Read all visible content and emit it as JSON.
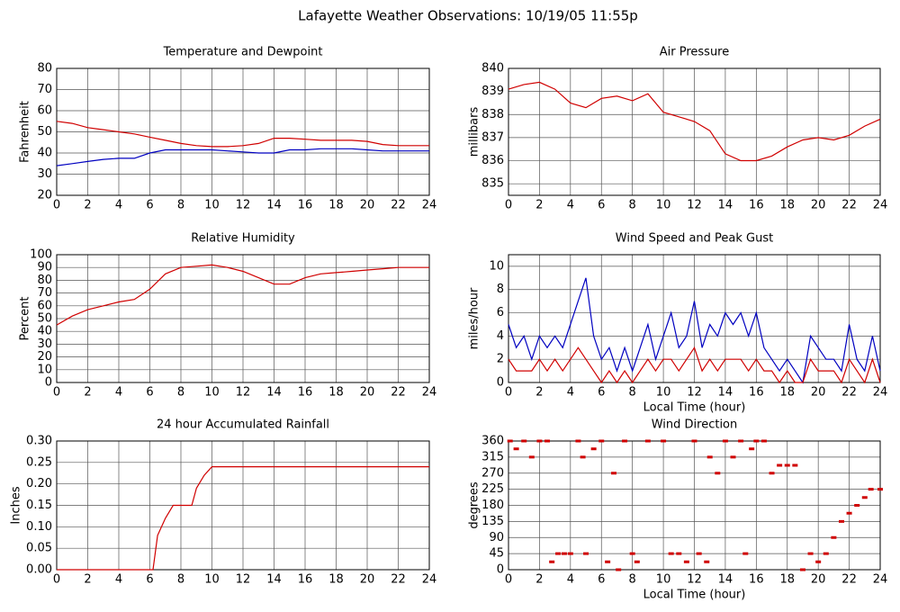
{
  "title": "Lafayette Weather Observations: 10/19/05 11:55p",
  "chart_data": [
    {
      "type": "line",
      "title": "Temperature and Dewpoint",
      "ylabel": "Fahrenheit",
      "grid": true,
      "x": [
        0,
        1,
        2,
        3,
        4,
        5,
        6,
        7,
        8,
        9,
        10,
        11,
        12,
        13,
        14,
        15,
        16,
        17,
        18,
        19,
        20,
        21,
        22,
        23,
        24
      ],
      "series": [
        {
          "color": "#d00000",
          "values": [
            55,
            54,
            52,
            51,
            50,
            49,
            47.5,
            46,
            44.5,
            43.5,
            43,
            43,
            43.5,
            44.5,
            47,
            47,
            46.5,
            46,
            46,
            46,
            45.5,
            44,
            43.5,
            43.5,
            43.5
          ]
        },
        {
          "color": "#0000c0",
          "values": [
            34,
            35,
            36,
            37,
            37.5,
            37.5,
            40,
            41.5,
            41.5,
            41.5,
            41.5,
            41,
            40.5,
            40,
            40,
            41.5,
            41.5,
            42,
            42,
            42,
            41.5,
            41,
            41,
            41,
            41
          ]
        }
      ],
      "xlim": [
        0,
        24
      ],
      "xticks": [
        0,
        2,
        4,
        6,
        8,
        10,
        12,
        14,
        16,
        18,
        20,
        22,
        24
      ],
      "ylim": [
        20,
        80
      ],
      "yticks": [
        20,
        30,
        40,
        50,
        60,
        70,
        80
      ]
    },
    {
      "type": "line",
      "title": "Air Pressure",
      "ylabel": "millibars",
      "grid": true,
      "x": [
        0,
        1,
        2,
        3,
        4,
        5,
        6,
        7,
        8,
        9,
        10,
        11,
        12,
        13,
        14,
        15,
        16,
        17,
        18,
        19,
        20,
        21,
        22,
        23,
        24
      ],
      "series": [
        {
          "color": "#d00000",
          "values": [
            839.1,
            839.3,
            839.4,
            839.1,
            838.5,
            838.3,
            838.7,
            838.8,
            838.6,
            838.9,
            838.1,
            837.9,
            837.7,
            837.3,
            836.3,
            836.0,
            836.0,
            836.2,
            836.6,
            836.9,
            837.0,
            836.9,
            837.1,
            837.5,
            837.8
          ]
        }
      ],
      "xlim": [
        0,
        24
      ],
      "xticks": [
        0,
        2,
        4,
        6,
        8,
        10,
        12,
        14,
        16,
        18,
        20,
        22,
        24
      ],
      "ylim": [
        834.5,
        840
      ],
      "yticks": [
        835,
        836,
        837,
        838,
        839,
        840
      ]
    },
    {
      "type": "line",
      "title": "Relative Humidity",
      "ylabel": "Percent",
      "grid": true,
      "x": [
        0,
        1,
        2,
        3,
        4,
        5,
        6,
        7,
        8,
        9,
        10,
        11,
        12,
        13,
        14,
        15,
        16,
        17,
        18,
        19,
        20,
        21,
        22,
        23,
        24
      ],
      "series": [
        {
          "color": "#d00000",
          "values": [
            45,
            52,
            57,
            60,
            63,
            65,
            73,
            85,
            90,
            91,
            92,
            90,
            87,
            82,
            77,
            77,
            82,
            85,
            86,
            87,
            88,
            89,
            90,
            90,
            90
          ]
        }
      ],
      "xlim": [
        0,
        24
      ],
      "xticks": [
        0,
        2,
        4,
        6,
        8,
        10,
        12,
        14,
        16,
        18,
        20,
        22,
        24
      ],
      "ylim": [
        0,
        100
      ],
      "yticks": [
        0,
        10,
        20,
        30,
        40,
        50,
        60,
        70,
        80,
        90,
        100
      ]
    },
    {
      "type": "line",
      "title": "Wind Speed and Peak Gust",
      "ylabel": "miles/hour",
      "xlabel": "Local Time (hour)",
      "grid": true,
      "x": [
        0,
        0.5,
        1,
        1.5,
        2,
        2.5,
        3,
        3.5,
        4,
        4.5,
        5,
        5.5,
        6,
        6.5,
        7,
        7.5,
        8,
        8.5,
        9,
        9.5,
        10,
        10.5,
        11,
        11.5,
        12,
        12.5,
        13,
        13.5,
        14,
        14.5,
        15,
        15.5,
        16,
        16.5,
        17,
        17.5,
        18,
        18.5,
        19,
        19.5,
        20,
        20.5,
        21,
        21.5,
        22,
        22.5,
        23,
        23.5,
        24
      ],
      "series": [
        {
          "color": "#0000c0",
          "values": [
            5,
            3,
            4,
            2,
            4,
            3,
            4,
            3,
            5,
            7,
            9,
            4,
            2,
            3,
            1,
            3,
            1,
            3,
            5,
            2,
            4,
            6,
            3,
            4,
            7,
            3,
            5,
            4,
            6,
            5,
            6,
            4,
            6,
            3,
            2,
            1,
            2,
            1,
            0,
            4,
            3,
            2,
            2,
            1,
            5,
            2,
            1,
            4,
            1
          ]
        },
        {
          "color": "#d00000",
          "values": [
            2,
            1,
            1,
            1,
            2,
            1,
            2,
            1,
            2,
            3,
            2,
            1,
            0,
            1,
            0,
            1,
            0,
            1,
            2,
            1,
            2,
            2,
            1,
            2,
            3,
            1,
            2,
            1,
            2,
            2,
            2,
            1,
            2,
            1,
            1,
            0,
            1,
            0,
            0,
            2,
            1,
            1,
            1,
            0,
            2,
            1,
            0,
            2,
            0
          ]
        }
      ],
      "xlim": [
        0,
        24
      ],
      "xticks": [
        0,
        2,
        4,
        6,
        8,
        10,
        12,
        14,
        16,
        18,
        20,
        22,
        24
      ],
      "ylim": [
        0,
        11
      ],
      "yticks": [
        0,
        2,
        4,
        6,
        8,
        10
      ]
    },
    {
      "type": "line",
      "title": "24 hour Accumulated Rainfall",
      "ylabel": "Inches",
      "grid": true,
      "x": [
        0,
        6,
        6.2,
        6.5,
        7,
        7.5,
        8,
        8.7,
        9,
        9.5,
        10,
        24
      ],
      "series": [
        {
          "color": "#d00000",
          "values": [
            0,
            0,
            0,
            0.08,
            0.12,
            0.15,
            0.15,
            0.15,
            0.19,
            0.22,
            0.24,
            0.24
          ]
        }
      ],
      "xlim": [
        0,
        24
      ],
      "xticks": [
        0,
        2,
        4,
        6,
        8,
        10,
        12,
        14,
        16,
        18,
        20,
        22,
        24
      ],
      "ylim": [
        0,
        0.3
      ],
      "yticks": [
        {
          "value": 0,
          "label": "0.00"
        },
        {
          "value": 0.05,
          "label": "0.05"
        },
        {
          "value": 0.1,
          "label": "0.10"
        },
        {
          "value": 0.15,
          "label": "0.15"
        },
        {
          "value": 0.2,
          "label": "0.20"
        },
        {
          "value": 0.25,
          "label": "0.25"
        },
        {
          "value": 0.3,
          "label": "0.30"
        }
      ]
    },
    {
      "type": "scatter",
      "title": "Wind Direction",
      "ylabel": "degrees",
      "xlabel": "Local Time (hour)",
      "grid": true,
      "x": [
        0.1,
        0.5,
        1,
        1.5,
        2,
        2.5,
        2.8,
        3.2,
        3.6,
        4,
        4.5,
        4.8,
        5,
        5.5,
        6,
        6.4,
        6.8,
        7.1,
        7.5,
        8,
        8.3,
        9,
        10,
        10.5,
        11,
        11.5,
        12,
        12.3,
        12.8,
        13,
        13.5,
        14,
        14.5,
        15,
        15.3,
        15.7,
        16,
        16.5,
        17,
        17.5,
        18,
        18.5,
        19,
        19.5,
        20,
        20.5,
        21,
        21.5,
        22,
        22.5,
        23,
        23.4,
        24
      ],
      "series": [
        {
          "color": "#d00000",
          "values": [
            360,
            338,
            360,
            315,
            360,
            360,
            22,
            45,
            45,
            45,
            360,
            315,
            45,
            338,
            360,
            22,
            270,
            0,
            360,
            45,
            22,
            360,
            360,
            45,
            45,
            22,
            360,
            45,
            22,
            315,
            270,
            360,
            315,
            360,
            45,
            338,
            360,
            360,
            270,
            292,
            292,
            292,
            0,
            45,
            22,
            45,
            90,
            135,
            158,
            180,
            202,
            225,
            225
          ]
        }
      ],
      "xlim": [
        0,
        24
      ],
      "xticks": [
        0,
        2,
        4,
        6,
        8,
        10,
        12,
        14,
        16,
        18,
        20,
        22,
        24
      ],
      "ylim": [
        0,
        360
      ],
      "yticks": [
        0,
        45,
        90,
        135,
        180,
        225,
        270,
        315,
        360
      ]
    }
  ]
}
